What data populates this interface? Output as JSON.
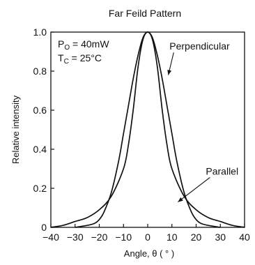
{
  "chart_data": {
    "type": "line",
    "title": "Far Feild Pattern",
    "xlabel": "Angle, θ ( ° )",
    "ylabel": "Relative intensity",
    "xlim": [
      -40,
      40
    ],
    "ylim": [
      0,
      1.0
    ],
    "x_ticks": [
      -40,
      -30,
      -20,
      -10,
      0,
      10,
      20,
      30,
      40
    ],
    "x_tick_labels": [
      "−40",
      "−30",
      "−20",
      "−10",
      "0",
      "10",
      "20",
      "30",
      "40"
    ],
    "y_ticks": [
      0,
      0.2,
      0.4,
      0.6,
      0.8,
      1.0
    ],
    "y_tick_labels": [
      "0",
      "0.2",
      "0.4",
      "0.6",
      "0.8",
      "1.0"
    ],
    "grid": false,
    "conditions": {
      "po": {
        "symbol": "P",
        "sub": "O",
        "text": " = 40mW"
      },
      "tc": {
        "symbol": "T",
        "sub": "C",
        "text": " = 25°C"
      }
    },
    "series": [
      {
        "name": "Perpendicular",
        "x": [
          -30,
          -25,
          -22,
          -20,
          -18,
          -15,
          -12,
          -10,
          -8,
          -6,
          -4,
          -2,
          0,
          2,
          4,
          6,
          8,
          10,
          12,
          15,
          18,
          20,
          22,
          25,
          30
        ],
        "y": [
          0.0,
          0.01,
          0.02,
          0.04,
          0.08,
          0.18,
          0.34,
          0.48,
          0.62,
          0.76,
          0.88,
          0.97,
          1.0,
          0.97,
          0.88,
          0.76,
          0.62,
          0.48,
          0.34,
          0.18,
          0.08,
          0.04,
          0.02,
          0.01,
          0.0
        ]
      },
      {
        "name": "Parallel",
        "x": [
          -40,
          -35,
          -30,
          -25,
          -20,
          -15,
          -10,
          -8,
          -6,
          -4,
          -2,
          0,
          2,
          4,
          6,
          8,
          10,
          15,
          20,
          25,
          30,
          35,
          40
        ],
        "y": [
          0.0,
          0.01,
          0.03,
          0.05,
          0.09,
          0.16,
          0.3,
          0.42,
          0.6,
          0.82,
          0.96,
          1.0,
          0.96,
          0.82,
          0.6,
          0.42,
          0.3,
          0.16,
          0.09,
          0.05,
          0.03,
          0.01,
          0.0
        ]
      }
    ],
    "annotations": [
      {
        "text": "Perpendicular",
        "series": "Perpendicular",
        "point_x": 8.5,
        "point_y": 0.78,
        "label_x": 9,
        "label_y": 0.91
      },
      {
        "text": "Parallel",
        "series": "Parallel",
        "point_x": 12.5,
        "point_y": 0.13,
        "label_x": 24,
        "label_y": 0.27
      }
    ]
  }
}
